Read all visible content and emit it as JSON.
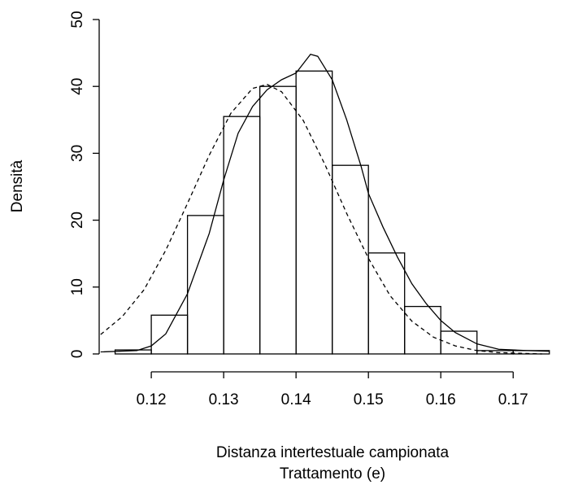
{
  "chart_data": {
    "type": "histogram",
    "xlabel": "Distanza intertestuale campionata",
    "subtitle": "Trattamento (e)",
    "ylabel": "Densità",
    "bins": [
      0.115,
      0.12,
      0.125,
      0.13,
      0.135,
      0.14,
      0.145,
      0.15,
      0.155,
      0.16,
      0.165,
      0.17,
      0.175
    ],
    "values": [
      0.6,
      5.8,
      20.7,
      35.5,
      40,
      42.3,
      28.2,
      15.1,
      7.1,
      3.4,
      0.5,
      0.5
    ],
    "color": "#000000",
    "xlim": [
      0.1128,
      0.1766
    ],
    "xticks": [
      0.12,
      0.13,
      0.14,
      0.15,
      0.16,
      0.17
    ],
    "ylim": [
      0,
      50
    ],
    "yticks": [
      0,
      10,
      20,
      30,
      40,
      50
    ],
    "curves": [
      {
        "dashed": false,
        "x": [
          0.113,
          0.118,
          0.12,
          0.122,
          0.125,
          0.128,
          0.13,
          0.132,
          0.134,
          0.136,
          0.138,
          0.14,
          0.142,
          0.143,
          0.145,
          0.147,
          0.149,
          0.15,
          0.152,
          0.154,
          0.156,
          0.158,
          0.16,
          0.162,
          0.165,
          0.168,
          0.172,
          0.175
        ],
        "values": [
          0.3,
          0.5,
          1.2,
          3,
          9,
          18,
          26,
          33,
          37,
          39.5,
          41,
          42,
          44.8,
          44.5,
          41,
          35,
          28,
          24,
          19,
          14.5,
          10.5,
          7.5,
          5,
          3.2,
          1.5,
          0.7,
          0.5,
          0.4
        ]
      },
      {
        "dashed": true,
        "x": [
          0.113,
          0.116,
          0.119,
          0.122,
          0.125,
          0.128,
          0.131,
          0.134,
          0.136,
          0.138,
          0.141,
          0.144,
          0.147,
          0.15,
          0.153,
          0.156,
          0.159,
          0.162,
          0.165,
          0.168,
          0.171,
          0.174
        ],
        "values": [
          2.9,
          5.6,
          9.6,
          15.5,
          22.5,
          29.7,
          36,
          39.7,
          40.3,
          39.2,
          34.9,
          28.3,
          21,
          14.3,
          8.7,
          4.9,
          2.5,
          1.2,
          0.5,
          0.2,
          0.1,
          0
        ]
      }
    ]
  }
}
